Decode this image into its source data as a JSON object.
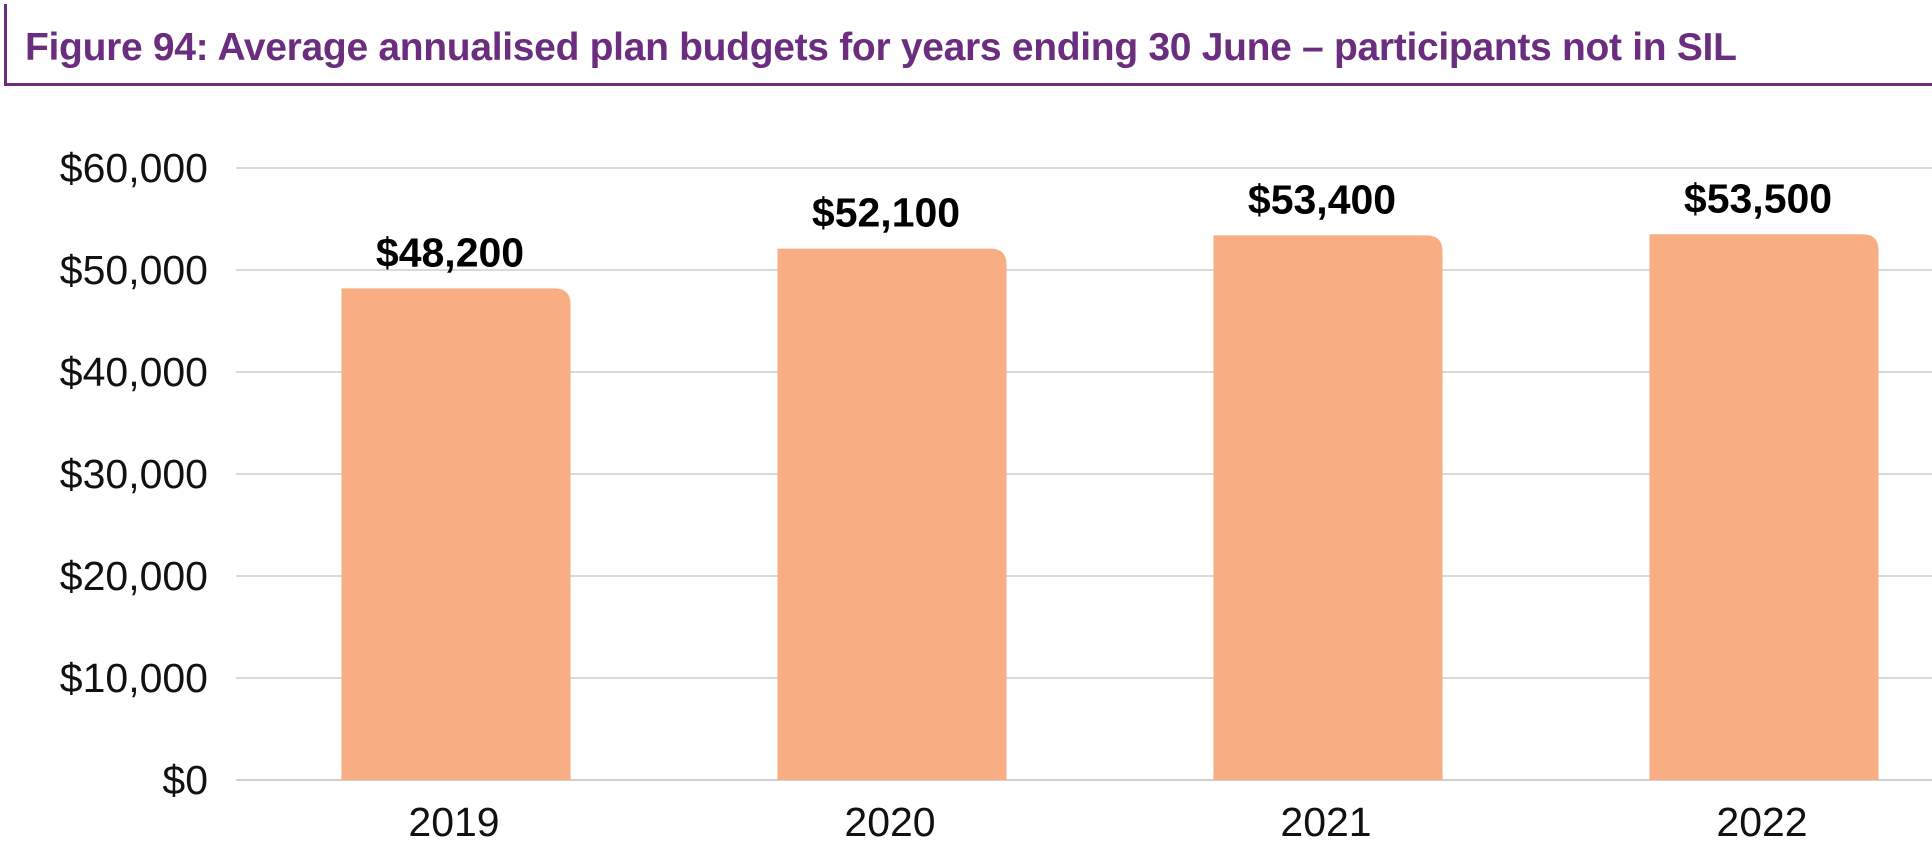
{
  "title": "Figure 94: Average annualised plan budgets for years ending 30 June – participants not in SIL",
  "colors": {
    "title": "#6b2d7e",
    "bar": "#f8ad82",
    "grid": "#d9d9d9"
  },
  "chart_data": {
    "type": "bar",
    "title": "Figure 94: Average annualised plan budgets for years ending 30 June – participants not in SIL",
    "xlabel": "",
    "ylabel": "",
    "categories": [
      "2019",
      "2020",
      "2021",
      "2022"
    ],
    "values": [
      48200,
      52100,
      53400,
      53500
    ],
    "data_labels": [
      "$48,200",
      "$52,100",
      "$53,400",
      "$53,500"
    ],
    "ylim": [
      0,
      60000
    ],
    "yticks": [
      0,
      10000,
      20000,
      30000,
      40000,
      50000,
      60000
    ],
    "ytick_labels": [
      "$0",
      "$10,000",
      "$20,000",
      "$30,000",
      "$40,000",
      "$50,000",
      "$60,000"
    ],
    "grid": true,
    "legend": "none"
  }
}
